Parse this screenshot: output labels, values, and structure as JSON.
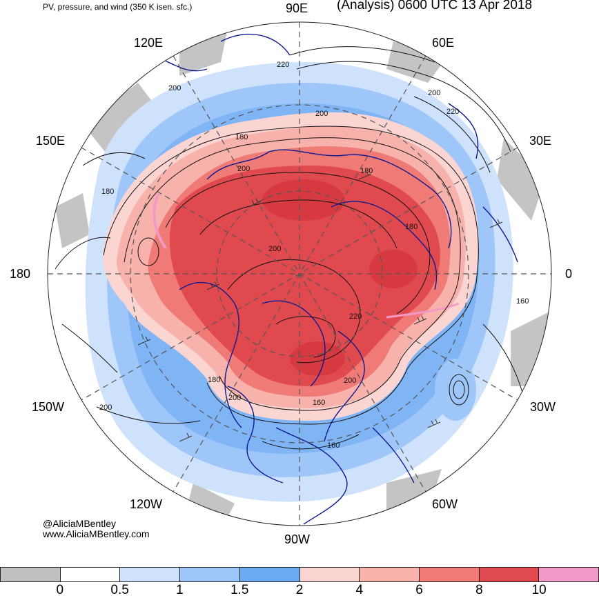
{
  "header": {
    "left_title": "PV, pressure, and wind (350 K isen. sfc.)",
    "right_title": "(Analysis) 0600 UTC 13 Apr 2018"
  },
  "longitude_labels": {
    "e90": "90E",
    "e60": "60E",
    "e30": "30E",
    "e0": "0",
    "e120": "120E",
    "e150": "150E",
    "e180": "180",
    "w150": "150W",
    "w120": "120W",
    "w90": "90W",
    "w60": "60W",
    "w30": "30W"
  },
  "contour_labels": [
    "220",
    "200",
    "200",
    "220",
    "200",
    "180",
    "200",
    "180",
    "180",
    "180",
    "200",
    "220",
    "160",
    "180",
    "200",
    "200",
    "200",
    "160",
    "160"
  ],
  "credits": {
    "handle": "@AliciaMBentley",
    "website": "www.AliciaMBentley.com"
  },
  "colorbar": {
    "segments": [
      "#c0c0c0",
      "#ffffff",
      "#cfe2fc",
      "#9fc6f8",
      "#6aa9f4",
      "#fbd5d2",
      "#f8b2ac",
      "#f07b76",
      "#e04a4f",
      "#f29ac7"
    ],
    "ticks": [
      "0",
      "0.5",
      "1",
      "1.5",
      "2",
      "4",
      "6",
      "8",
      "10"
    ]
  },
  "colors": {
    "pv_high": "#e04a4f",
    "pv_mid": "#f07b76",
    "pv_low": "#f8b2ac",
    "coast": "#0b1890",
    "grid": "#555555"
  }
}
